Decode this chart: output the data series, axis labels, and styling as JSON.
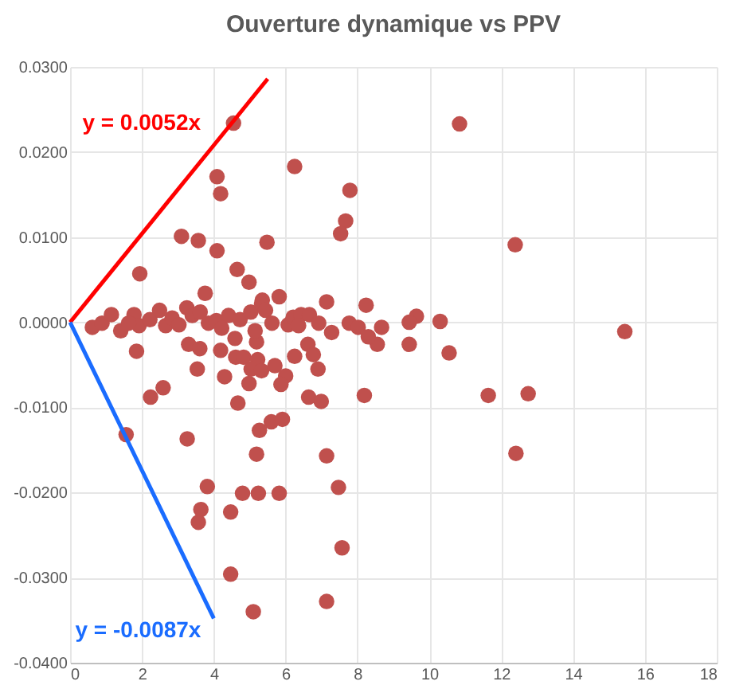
{
  "chart_data": {
    "type": "scatter",
    "title": "Ouverture dynamique vs PPV",
    "xlim": [
      0,
      18
    ],
    "xticks": [
      0,
      2,
      4,
      6,
      8,
      10,
      12,
      14,
      16,
      18
    ],
    "ylim": [
      -0.04,
      0.03
    ],
    "yticks": [
      {
        "value": -0.04,
        "label": "-0.0400"
      },
      {
        "value": -0.03,
        "label": "-0.0300"
      },
      {
        "value": -0.02,
        "label": "-0.0200"
      },
      {
        "value": -0.01,
        "label": "-0.0100"
      },
      {
        "value": 0,
        "label": "0.0000"
      },
      {
        "value": 0.01,
        "label": "0.0100"
      },
      {
        "value": 0.02,
        "label": "0.0200"
      },
      {
        "value": 0.03,
        "label": "0.0300"
      }
    ],
    "grid": true,
    "series": [
      {
        "color": "#c0504d",
        "marker": "circle",
        "x": [
          4.55,
          10.84,
          6.25,
          4.09,
          4.19,
          7.79,
          7.67,
          7.53,
          3.1,
          3.57,
          4.09,
          5.48,
          12.39,
          1.94,
          4.65,
          4.98,
          3.76,
          5.82,
          5.35,
          7.14,
          8.24,
          15.44,
          10.3,
          9.64,
          9.44,
          8.67,
          1.85,
          3.54,
          4.19,
          4.61,
          4.83,
          3.3,
          3.61,
          5.19,
          5.22,
          5.04,
          5.33,
          5.7,
          6.0,
          5.87,
          6.25,
          6.62,
          6.77,
          6.9,
          4.3,
          4.98,
          2.59,
          2.24,
          4.67,
          6.64,
          6.99,
          8.19,
          11.64,
          12.75,
          8.55,
          9.44,
          10.55,
          1.56,
          3.26,
          5.27,
          5.6,
          5.91,
          5.19,
          7.14,
          12.41,
          3.82,
          4.8,
          5.24,
          5.82,
          7.47,
          3.64,
          4.47,
          3.57,
          7.57,
          4.47,
          7.14,
          5.1,
          0.62,
          0.89,
          1.15,
          1.41,
          1.78,
          1.92,
          2.22,
          2.49,
          2.66,
          2.84,
          3.25,
          3.4,
          3.62,
          3.85,
          4.07,
          4.41,
          4.59,
          4.73,
          5.03,
          5.15,
          5.33,
          5.44,
          5.62,
          6.07,
          6.21,
          6.43,
          6.66,
          6.92,
          7.28,
          7.77,
          8.02,
          8.3,
          1.63,
          3.03,
          4.22,
          6.36
        ],
        "values": [
          0.0234,
          0.0233,
          0.0183,
          0.0171,
          0.0151,
          0.0155,
          0.0119,
          0.0104,
          0.0101,
          0.0096,
          0.0084,
          0.0094,
          0.0091,
          0.0057,
          0.0062,
          0.0047,
          0.0034,
          0.003,
          0.0026,
          0.0024,
          0.002,
          -0.0011,
          0.0001,
          0.0007,
          0.0,
          -0.0006,
          -0.0034,
          -0.0055,
          -0.0033,
          -0.0041,
          -0.0041,
          -0.0026,
          -0.0031,
          -0.0023,
          -0.0044,
          -0.0055,
          -0.0057,
          -0.0051,
          -0.0063,
          -0.0073,
          -0.004,
          -0.0026,
          -0.0038,
          -0.0055,
          -0.0064,
          -0.0072,
          -0.0077,
          -0.0088,
          -0.0095,
          -0.0088,
          -0.0093,
          -0.0086,
          -0.0086,
          -0.0084,
          -0.0026,
          -0.0026,
          -0.0036,
          -0.0132,
          -0.0137,
          -0.0127,
          -0.0117,
          -0.0114,
          -0.0155,
          -0.0157,
          -0.0154,
          -0.0193,
          -0.0201,
          -0.0201,
          -0.0201,
          -0.0194,
          -0.022,
          -0.0223,
          -0.0235,
          -0.0265,
          -0.0296,
          -0.0328,
          -0.034,
          -0.0006,
          -0.0001,
          0.0009,
          -0.001,
          0.0009,
          -0.0004,
          0.0003,
          0.0014,
          -0.0004,
          0.0005,
          0.0017,
          0.0008,
          0.0012,
          -0.0001,
          0.0002,
          0.0008,
          -0.0019,
          0.0003,
          0.0012,
          -0.001,
          0.0022,
          0.0014,
          -0.0001,
          -0.0003,
          0.0006,
          0.0009,
          0.0009,
          -0.0001,
          -0.0012,
          -0.0001,
          -0.0006,
          -0.0017,
          -0.0001,
          -0.0003,
          -0.0007,
          -0.0004
        ]
      },
      {
        "type": "line",
        "name": "y = 0.0052x",
        "color": "#ff0000",
        "x": [
          0,
          5.5
        ],
        "values": [
          0,
          0.0286
        ]
      },
      {
        "type": "line",
        "name": "y = -0.0087x",
        "color": "#1a6cff",
        "x": [
          0,
          4
        ],
        "values": [
          0,
          -0.0348
        ]
      }
    ]
  }
}
